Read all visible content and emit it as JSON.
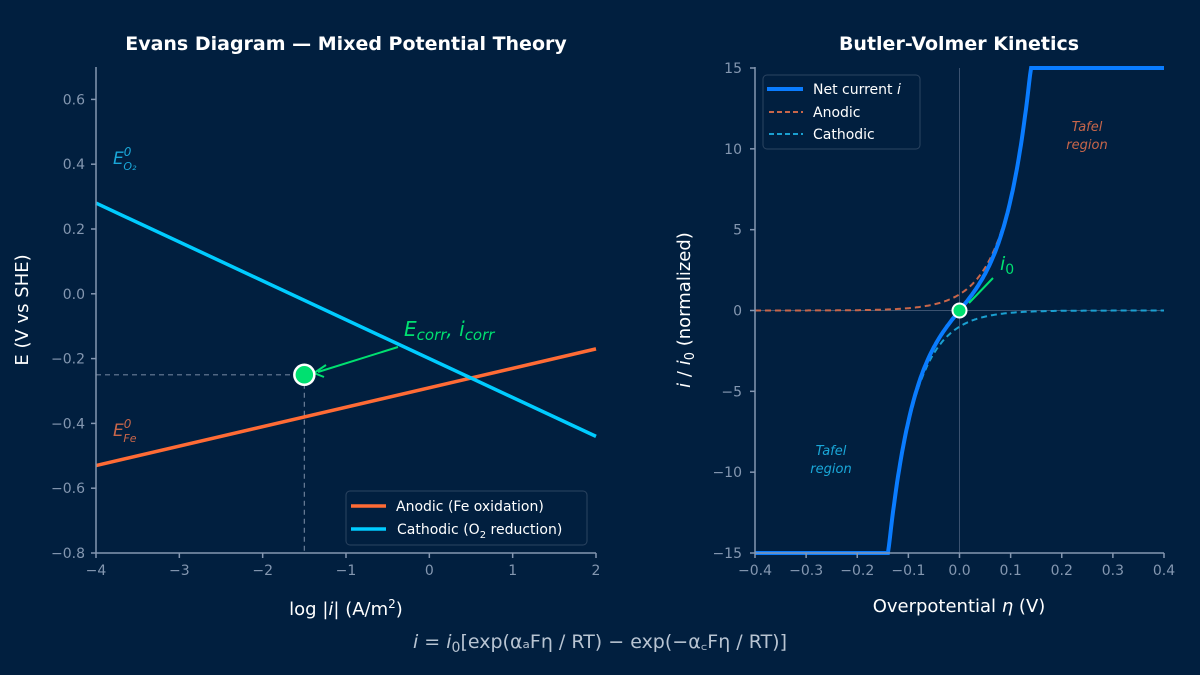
{
  "colors": {
    "background": "#011f3f",
    "anodic": "#ff6b35",
    "cathodic": "#00ccff",
    "net": "#0a7cff",
    "anodic_dashed": "#c8664a",
    "cathodic_dashed": "#1a9fd0",
    "highlight": "#00e070",
    "axis": "#8497b0"
  },
  "formula": {
    "lhs": "i = i",
    "lhs_sub": "0",
    "body": "[exp(αₐFη / RT) − exp(−α꜀Fη / RT)]"
  },
  "chart_data": [
    {
      "type": "line",
      "title": "Evans Diagram — Mixed Potential Theory",
      "xlabel": "log |i| (A/m²)",
      "xlabel_parts": {
        "pre": "log |",
        "var": "i",
        "post": "| (A/m",
        "sup": "2",
        "end": ")"
      },
      "ylabel": "E (V vs SHE)",
      "xlim": [
        -4,
        2
      ],
      "ylim": [
        -0.8,
        0.7
      ],
      "xticks": [
        -4,
        -3,
        -2,
        -1,
        0,
        1,
        2
      ],
      "xtick_labels": [
        "−4",
        "−3",
        "−2",
        "−1",
        "0",
        "1",
        "2"
      ],
      "yticks": [
        -0.8,
        -0.6,
        -0.4,
        -0.2,
        0.0,
        0.2,
        0.4,
        0.6
      ],
      "ytick_labels": [
        "−0.8",
        "−0.6",
        "−0.4",
        "−0.2",
        "0.0",
        "0.2",
        "0.4",
        "0.6"
      ],
      "grid": false,
      "legend_position": "lower-right",
      "series": [
        {
          "name": "Anodic (Fe oxidation)",
          "x": [
            -4,
            2
          ],
          "y": [
            -0.53,
            -0.17
          ]
        },
        {
          "name": "Cathodic (O₂ reduction)",
          "name_parts": {
            "pre": "Cathodic (O",
            "sub": "2",
            "post": " reduction)"
          },
          "x": [
            -4,
            2
          ],
          "y": [
            0.28,
            -0.44
          ]
        }
      ],
      "corrosion_point": {
        "x": -1.5,
        "y": -0.25
      },
      "annotations": {
        "corr": {
          "E": "E",
          "E_sub": "corr",
          "sep": ", ",
          "i": "i",
          "i_sub": "corr"
        },
        "e_o2": {
          "E": "E",
          "sup": "0",
          "sub": "O₂"
        },
        "e_fe": {
          "E": "E",
          "sup": "0",
          "sub": "Fe"
        }
      }
    },
    {
      "type": "line",
      "title": "Butler-Volmer Kinetics",
      "xlabel": "Overpotential η (V)",
      "xlabel_parts": {
        "pre": "Overpotential ",
        "var": "η",
        "post": " (V)"
      },
      "ylabel": "i / i₀ (normalized)",
      "ylabel_parts": {
        "var": "i",
        "mid": " / ",
        "var2": "i",
        "sub": "0",
        "post": " (normalized)"
      },
      "xlim": [
        -0.4,
        0.4
      ],
      "ylim": [
        -15,
        15
      ],
      "xticks": [
        -0.4,
        -0.3,
        -0.2,
        -0.1,
        0.0,
        0.1,
        0.2,
        0.3,
        0.4
      ],
      "xtick_labels": [
        "−0.4",
        "−0.3",
        "−0.2",
        "−0.1",
        "0.0",
        "0.1",
        "0.2",
        "0.3",
        "0.4"
      ],
      "yticks": [
        -15,
        -10,
        -5,
        0,
        5,
        10,
        15
      ],
      "ytick_labels": [
        "−15",
        "−10",
        "−5",
        "0",
        "5",
        "10",
        "15"
      ],
      "grid": false,
      "legend_position": "top-left",
      "model": {
        "f_alpha": 19.45,
        "clip": 15
      },
      "series": [
        {
          "name": "Net current i",
          "name_parts": {
            "pre": "Net current ",
            "var": "i"
          },
          "formula": "exp(f·η) − exp(−f·η), clipped to ±15"
        },
        {
          "name": "Anodic",
          "formula": "exp(f·η)"
        },
        {
          "name": "Cathodic",
          "formula": "−exp(−f·η)"
        }
      ],
      "exchange_point": {
        "x": 0,
        "y": 0
      },
      "annotations": {
        "i0": {
          "i": "i",
          "sub": "0"
        },
        "tafel_anodic": [
          "Tafel",
          "region"
        ],
        "tafel_cathodic": [
          "Tafel",
          "region"
        ]
      }
    }
  ]
}
